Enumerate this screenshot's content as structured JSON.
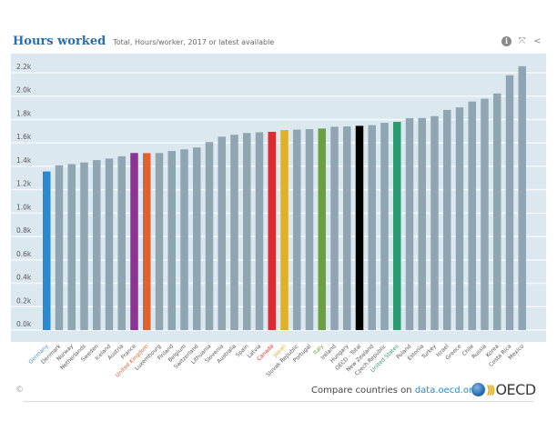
{
  "header": {
    "title": "Hours worked",
    "subtitle": "Total, Hours/worker, 2017 or latest available"
  },
  "toolbar": {
    "info_icon": "i",
    "expand_icon": "⤧",
    "share_icon": "<"
  },
  "footer": {
    "copyright": "©",
    "compare_text": "Compare countries on ",
    "link_text": "data.oecd.org",
    "logo_text": "OECD"
  },
  "colors": {
    "plot_bg": "#dce8f0",
    "grid": "#f4f8fb",
    "default_bar": "#8fa5b1",
    "title": "#2a6ea6"
  },
  "chart_data": {
    "type": "bar",
    "title": "Hours worked",
    "subtitle": "Total, Hours/worker, 2017 or latest available",
    "xlabel": "",
    "ylabel": "",
    "ylim": [
      0,
      2300
    ],
    "yticks": [
      0,
      200,
      400,
      600,
      800,
      1000,
      1200,
      1400,
      1600,
      1800,
      2000,
      2200
    ],
    "ytick_labels": [
      "0.0k",
      "0.2k",
      "0.4k",
      "0.6k",
      "0.8k",
      "1.0k",
      "1.2k",
      "1.4k",
      "1.6k",
      "1.8k",
      "2.0k",
      "2.2k"
    ],
    "grid": true,
    "categories": [
      "Germany",
      "Denmark",
      "Norway",
      "Netherlands",
      "Sweden",
      "Iceland",
      "Austria",
      "France",
      "United Kingdom",
      "Luxembourg",
      "Finland",
      "Belgium",
      "Switzerland",
      "Lithuania",
      "Slovenia",
      "Australia",
      "Spain",
      "Latvia",
      "Canada",
      "Japan",
      "Slovak Republic",
      "Portugal",
      "Italy",
      "Ireland",
      "Hungary",
      "OECD - Total",
      "New Zealand",
      "Czech Republic",
      "United States",
      "Poland",
      "Estonia",
      "Turkey",
      "Israel",
      "Greece",
      "Chile",
      "Russia",
      "Korea",
      "Costa Rica",
      "Mexico"
    ],
    "values": [
      1356,
      1408,
      1419,
      1433,
      1453,
      1467,
      1486,
      1514,
      1513,
      1514,
      1531,
      1545,
      1561,
      1607,
      1653,
      1670,
      1685,
      1691,
      1695,
      1710,
      1714,
      1718,
      1723,
      1738,
      1741,
      1746,
      1752,
      1772,
      1780,
      1812,
      1813,
      1829,
      1882,
      1904,
      1954,
      1978,
      2023,
      2179,
      2256
    ],
    "highlight_colors": {
      "Germany": "#2a8ad0",
      "France": "#8c3393",
      "United Kingdom": "#e06030",
      "Canada": "#e02a30",
      "Japan": "#e0b02a",
      "Italy": "#6aa040",
      "OECD - Total": "#000000",
      "United States": "#2a9a70"
    },
    "label_colors": {
      "Germany": "#4a90d0",
      "United Kingdom": "#e06030",
      "Canada": "#e02a30",
      "Japan": "#e0b02a",
      "Italy": "#6aa040",
      "United States": "#2a9a70"
    }
  }
}
